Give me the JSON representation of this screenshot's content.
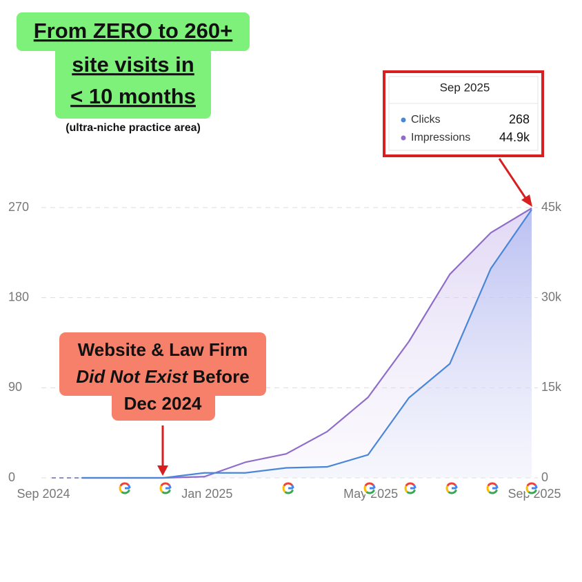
{
  "chart_data": {
    "type": "line",
    "headline": [
      "From ZERO to 260+",
      "site visits in",
      "< 10 months"
    ],
    "subtitle": "(ultra-niche practice area)",
    "categories": [
      "Sep 2024",
      null,
      null,
      null,
      "Jan 2025",
      null,
      null,
      null,
      "May 2025",
      null,
      null,
      null,
      "Sep 2025"
    ],
    "series": [
      {
        "name": "Clicks",
        "color": "#4a86d8",
        "values": [
          null,
          0,
          0,
          0,
          5,
          5,
          10,
          11,
          23,
          80,
          114,
          209,
          268
        ]
      },
      {
        "name": "Impressions",
        "color": "#8e6cc8",
        "axis": "y2",
        "values": [
          null,
          0,
          0,
          0,
          200,
          2600,
          4000,
          7700,
          13400,
          22700,
          33900,
          40800,
          44900
        ]
      }
    ],
    "ylim": [
      0,
      270
    ],
    "yticks": [
      0,
      90,
      180,
      270
    ],
    "y2lim": [
      0,
      45000
    ],
    "y2ticks": [
      0,
      {
        "value": 15000,
        "label": "15k"
      },
      {
        "value": 30000,
        "label": "30k"
      },
      {
        "value": 45000,
        "label": "45k"
      }
    ],
    "grid": true,
    "tooltip": {
      "title": "Sep 2025",
      "items": [
        {
          "name": "Clicks",
          "value": "268"
        },
        {
          "name": "Impressions",
          "value": "44.9k"
        }
      ]
    },
    "annotation": {
      "line1": "Website & Law Firm",
      "line2_italic": "Did Not Exist",
      "line2_rest": " Before",
      "line3": "Dec 2024"
    }
  }
}
